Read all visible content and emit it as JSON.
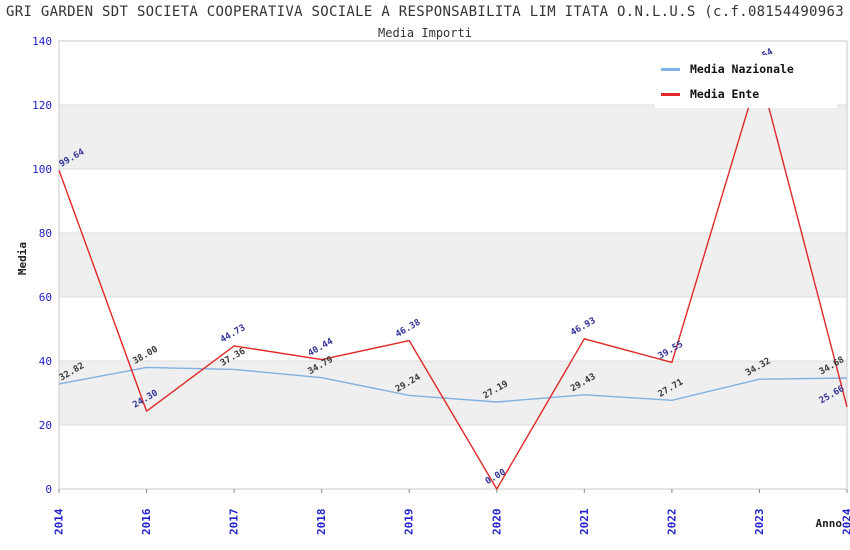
{
  "header": {
    "title": "GRI GARDEN SDT SOCIETA COOPERATIVA SOCIALE A RESPONSABILITA LIM ITATA O.N.L.U.S (c.f.08154490963",
    "subtitle": "Media Importi"
  },
  "chart_data": {
    "type": "line",
    "title": "GRI GARDEN SDT SOCIETA COOPERATIVA SOCIALE A RESPONSABILITA LIM ITATA O.N.L.U.S (c.f.08154490963",
    "subtitle": "Media Importi",
    "xlabel": "Anno",
    "ylabel": "Media",
    "categories": [
      "2014",
      "2016",
      "2017",
      "2018",
      "2019",
      "2020",
      "2021",
      "2022",
      "2023",
      "2024"
    ],
    "series": [
      {
        "name": "Media Nazionale",
        "color": "#7fb2e0",
        "label_color": "#3a3a3a",
        "values": [
          32.82,
          38.0,
          37.36,
          34.79,
          29.24,
          27.19,
          29.43,
          27.71,
          34.32,
          34.68
        ]
      },
      {
        "name": "Media Ente",
        "color": "#e02828",
        "label_color": "#333399",
        "values": [
          99.64,
          24.3,
          44.73,
          40.44,
          46.38,
          0.0,
          46.93,
          39.55,
          130.54,
          25.66
        ]
      }
    ],
    "ylim": [
      0,
      140
    ],
    "yticks": [
      0,
      20,
      40,
      60,
      80,
      100,
      120,
      140
    ],
    "legend_position": "top-right",
    "grid": true,
    "band_color": "#efefef",
    "grid_color": "#dcdcdc",
    "border_color": "#c9c9c9",
    "tick_label_color": "#2222cc",
    "tick_mark_color": "#888888"
  }
}
